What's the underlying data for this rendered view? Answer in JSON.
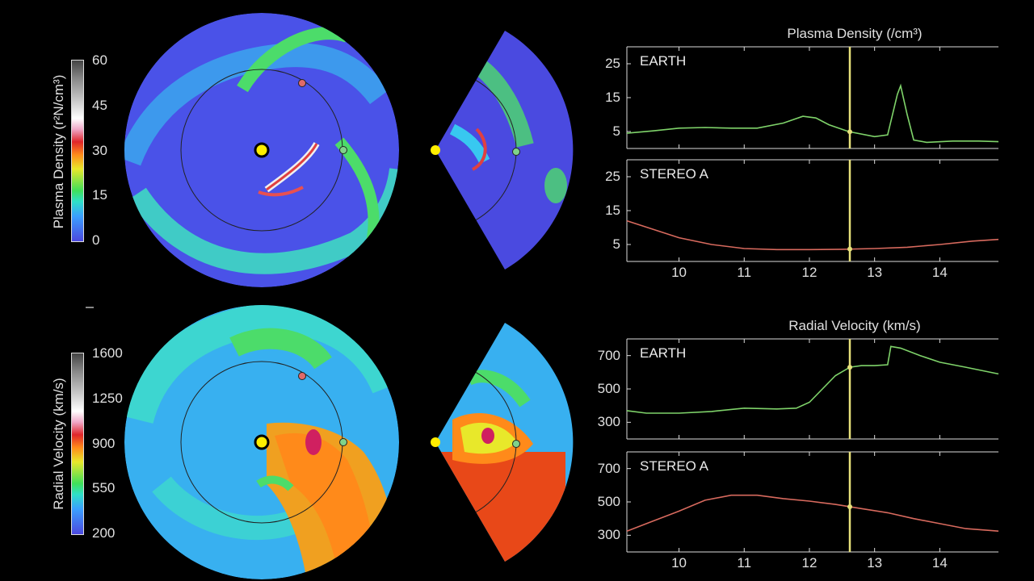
{
  "colorbars": {
    "density": {
      "title": "Plasma Density (r²N/cm³)",
      "ticks": [
        "60",
        "45",
        "30",
        "15",
        "0"
      ]
    },
    "velocity": {
      "title": "Radial Velocity (km/s)",
      "ticks": [
        "1600",
        "1250",
        "900",
        "550",
        "200"
      ]
    }
  },
  "colors": {
    "earth_line": "#7fd36a",
    "stereo_line": "#d86a5e",
    "time_marker": "#e6e07a",
    "background": "#000000"
  },
  "chart_data": [
    {
      "type": "line",
      "section_title": "Plasma Density (/cm³)",
      "label": "EARTH",
      "x": [
        9.2,
        9.6,
        10.0,
        10.4,
        10.8,
        11.2,
        11.6,
        11.9,
        12.1,
        12.3,
        12.6,
        13.0,
        13.2,
        13.35,
        13.4,
        13.5,
        13.6,
        13.8,
        14.2,
        14.6,
        14.9
      ],
      "y": [
        4.5,
        5.2,
        6.0,
        6.2,
        6.0,
        6.0,
        7.5,
        9.5,
        9.0,
        7.0,
        5.0,
        3.5,
        4.0,
        16.0,
        18.5,
        10.0,
        2.5,
        1.8,
        2.2,
        2.2,
        2.0
      ],
      "yticks": [
        "25",
        "15",
        "5"
      ],
      "xticks": [
        "10",
        "11",
        "12",
        "13",
        "14"
      ],
      "xlim": [
        9.2,
        14.9
      ],
      "ylim": [
        0,
        30
      ],
      "marker_x": 12.62
    },
    {
      "type": "line",
      "label": "STEREO A",
      "x": [
        9.2,
        9.6,
        10.0,
        10.5,
        11.0,
        11.5,
        12.0,
        12.5,
        13.0,
        13.5,
        14.0,
        14.5,
        14.9
      ],
      "y": [
        12.0,
        9.5,
        7.0,
        5.0,
        3.8,
        3.5,
        3.5,
        3.6,
        3.8,
        4.2,
        5.0,
        6.0,
        6.5
      ],
      "yticks": [
        "25",
        "15",
        "5"
      ],
      "xticks": [
        "10",
        "11",
        "12",
        "13",
        "14"
      ],
      "xlim": [
        9.2,
        14.9
      ],
      "ylim": [
        0,
        30
      ],
      "marker_x": 12.62
    },
    {
      "type": "line",
      "section_title": "Radial Velocity (km/s)",
      "label": "EARTH",
      "x": [
        9.2,
        9.5,
        10.0,
        10.5,
        11.0,
        11.5,
        11.8,
        12.0,
        12.2,
        12.4,
        12.62,
        12.8,
        13.0,
        13.2,
        13.25,
        13.4,
        13.7,
        14.0,
        14.4,
        14.9
      ],
      "y": [
        370,
        355,
        355,
        365,
        385,
        380,
        385,
        420,
        500,
        580,
        630,
        640,
        640,
        645,
        755,
        745,
        700,
        660,
        630,
        590
      ],
      "yticks": [
        "700",
        "500",
        "300"
      ],
      "xticks": [
        "10",
        "11",
        "12",
        "13",
        "14"
      ],
      "xlim": [
        9.2,
        14.9
      ],
      "ylim": [
        200,
        800
      ],
      "marker_x": 12.62
    },
    {
      "type": "line",
      "label": "STEREO A",
      "x": [
        9.2,
        9.6,
        10.0,
        10.4,
        10.8,
        11.2,
        11.6,
        12.0,
        12.4,
        12.8,
        13.2,
        13.6,
        14.0,
        14.4,
        14.9
      ],
      "y": [
        325,
        385,
        445,
        510,
        540,
        540,
        520,
        505,
        485,
        460,
        435,
        400,
        370,
        340,
        325
      ],
      "yticks": [
        "700",
        "500",
        "300"
      ],
      "xticks": [
        "10",
        "11",
        "12",
        "13",
        "14"
      ],
      "xlim": [
        9.2,
        14.9
      ],
      "ylim": [
        200,
        800
      ],
      "marker_x": 12.62
    }
  ]
}
